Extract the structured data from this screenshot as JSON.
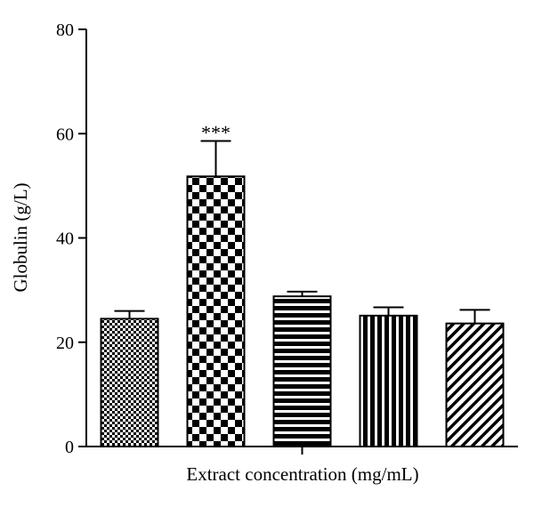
{
  "chart_data": {
    "type": "bar",
    "title": "",
    "xlabel": "Extract concentration (mg/mL)",
    "ylabel": "Globulin (g/L)",
    "ylim": [
      0,
      80
    ],
    "yticks": [
      0,
      20,
      40,
      60,
      80
    ],
    "ytick_labels": [
      "0",
      "20",
      "40",
      "60",
      "80"
    ],
    "categories": [
      "",
      "",
      "",
      "",
      ""
    ],
    "values": [
      24.5,
      51.8,
      28.8,
      25.1,
      23.6
    ],
    "errors": [
      1.5,
      6.8,
      0.9,
      1.6,
      2.6
    ],
    "patterns": [
      "checker-small",
      "checker-large",
      "horizontal-stripes",
      "vertical-stripes",
      "diagonal-stripes"
    ],
    "annotations": [
      {
        "bar_index": 1,
        "text": "***"
      }
    ],
    "grid": false,
    "colors": {
      "axis": "#000000",
      "bar_dark": "#000000",
      "bar_light": "#ffffff"
    }
  }
}
